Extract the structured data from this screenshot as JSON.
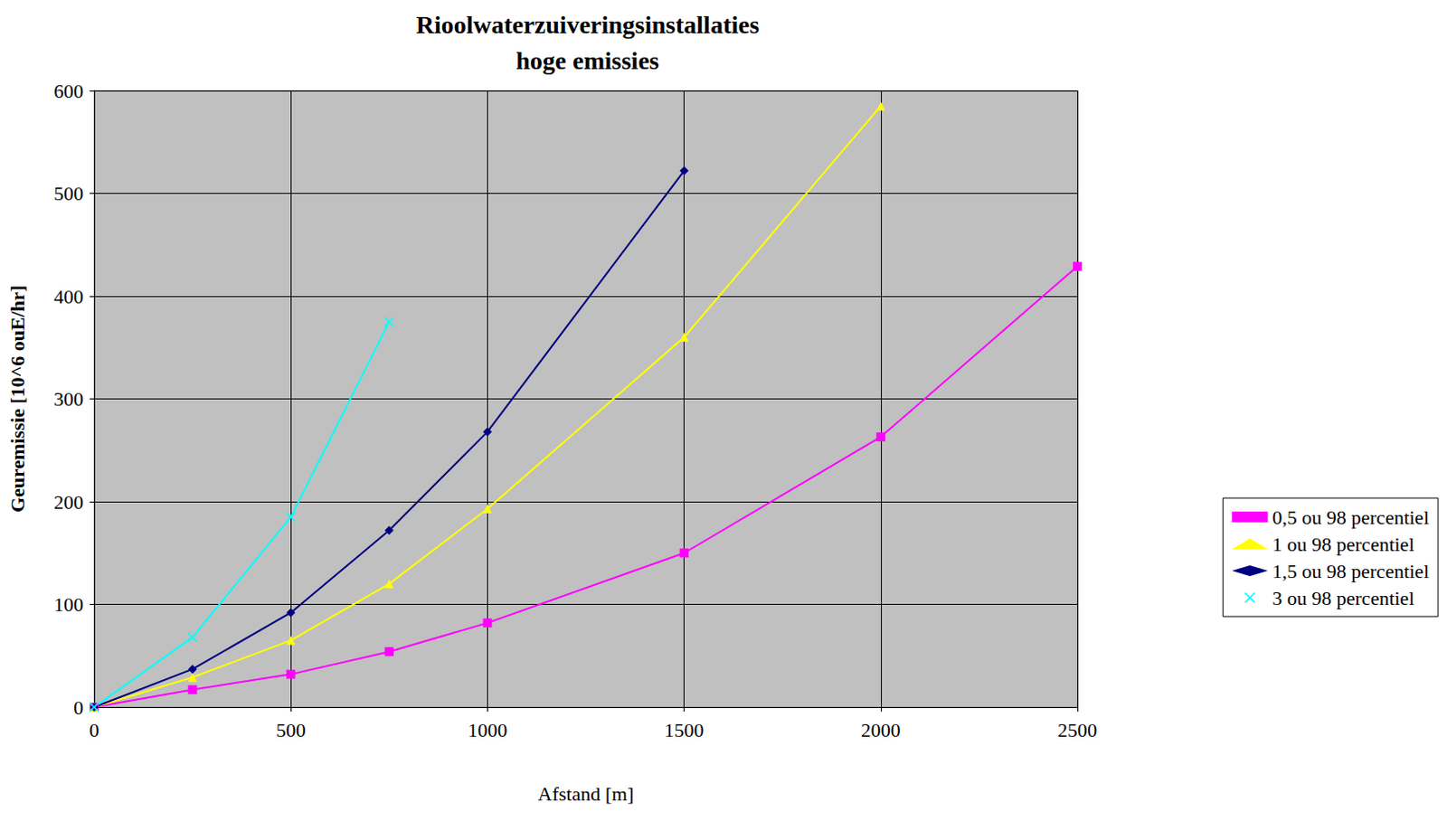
{
  "chart_data": {
    "type": "line",
    "title": "Rioolwaterzuiveringsinstallaties\nhoge emissies",
    "x_label": "Afstand [m]",
    "y_label": "Geuremissie [10^6 ouE/hr]",
    "xlim": [
      0,
      2500
    ],
    "xticks": [
      0,
      500,
      1000,
      1500,
      2000,
      2500
    ],
    "ylim": [
      0,
      600
    ],
    "yticks": [
      0,
      100,
      200,
      300,
      400,
      500,
      600
    ],
    "grid": true,
    "legend": "right",
    "series": [
      {
        "name": "0,5 ou 98 percentiel",
        "color": "#FF00FF",
        "marker": "square",
        "x": [
          0,
          250,
          500,
          750,
          1000,
          1500,
          2000,
          2500
        ],
        "values": [
          0,
          17,
          32,
          54,
          82,
          150,
          263,
          429
        ]
      },
      {
        "name": "1 ou 98 percentiel",
        "color": "#FFFF00",
        "marker": "triangle",
        "x": [
          0,
          250,
          500,
          750,
          1000,
          1500,
          2000
        ],
        "values": [
          0,
          29,
          65,
          120,
          193,
          360,
          585
        ]
      },
      {
        "name": "1,5 ou 98 percentiel",
        "color": "#000080",
        "marker": "diamond",
        "x": [
          0,
          250,
          500,
          750,
          1000,
          1500
        ],
        "values": [
          0,
          37,
          92,
          172,
          268,
          522
        ]
      },
      {
        "name": "3 ou 98 percentiel",
        "color": "#00FFFF",
        "marker": "x",
        "x": [
          0,
          250,
          500,
          750
        ],
        "values": [
          0,
          68,
          185,
          375
        ]
      }
    ]
  }
}
